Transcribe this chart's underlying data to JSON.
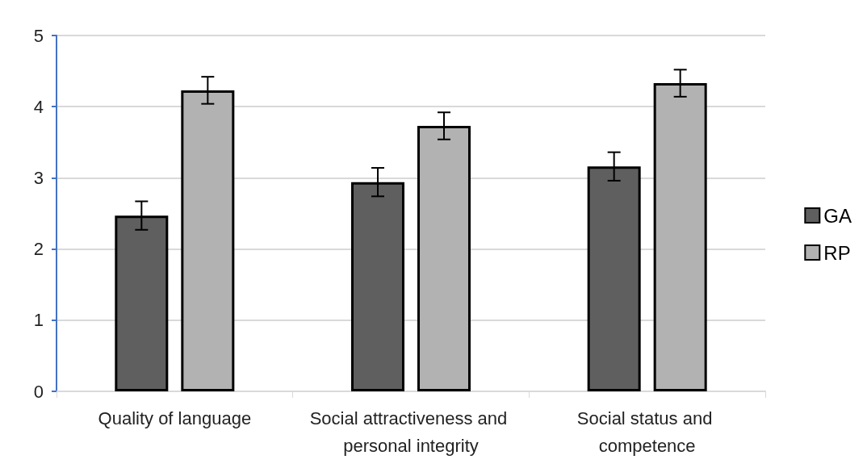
{
  "chart_data": {
    "type": "bar",
    "categories": [
      "Quality of language",
      "Social attractiveness and personal integrity",
      "Social status and competence"
    ],
    "series": [
      {
        "name": "GA",
        "color": "#5f5f5f",
        "values": [
          2.47,
          2.94,
          3.16
        ],
        "errors": [
          0.2,
          0.2,
          0.2
        ]
      },
      {
        "name": "RP",
        "color": "#b2b2b2",
        "values": [
          4.23,
          3.73,
          4.33
        ],
        "errors": [
          0.19,
          0.19,
          0.19
        ]
      }
    ],
    "ylim": [
      0,
      5
    ],
    "yticks": [
      0,
      1,
      2,
      3,
      4,
      5
    ],
    "grid": "y",
    "legend": "right"
  }
}
